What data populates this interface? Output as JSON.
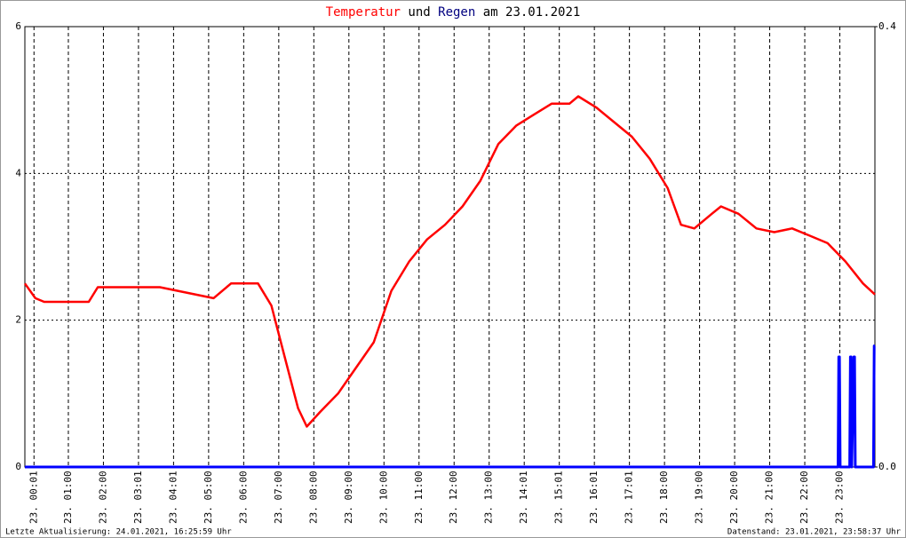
{
  "chart_data": {
    "type": "line",
    "title_parts": [
      "Temperatur",
      "und",
      "Regen",
      "am 23.01.2021"
    ],
    "title_colors": [
      "#ff0000",
      "#000000",
      "#000080",
      "#000000"
    ],
    "footer_left": "Letzte Aktualisierung: 24.01.2021, 16:25:59 Uhr",
    "footer_right": "Datenstand: 23.01.2021, 23:58:37 Uhr",
    "xlim": [
      -0.24,
      24
    ],
    "xticks": [
      {
        "value": 0.02,
        "label": "23. 00:01"
      },
      {
        "value": 1,
        "label": "23. 01:00"
      },
      {
        "value": 2,
        "label": "23. 02:00"
      },
      {
        "value": 3,
        "label": "23. 03:01"
      },
      {
        "value": 4,
        "label": "23. 04:01"
      },
      {
        "value": 5,
        "label": "23. 05:00"
      },
      {
        "value": 6,
        "label": "23. 06:00"
      },
      {
        "value": 7,
        "label": "23. 07:00"
      },
      {
        "value": 8,
        "label": "23. 08:00"
      },
      {
        "value": 9,
        "label": "23. 09:00"
      },
      {
        "value": 10,
        "label": "23. 10:00"
      },
      {
        "value": 11,
        "label": "23. 11:00"
      },
      {
        "value": 12,
        "label": "23. 12:00"
      },
      {
        "value": 13,
        "label": "23. 13:00"
      },
      {
        "value": 14,
        "label": "23. 14:01"
      },
      {
        "value": 15,
        "label": "23. 15:01"
      },
      {
        "value": 16,
        "label": "23. 16:01"
      },
      {
        "value": 17,
        "label": "23. 17:01"
      },
      {
        "value": 18,
        "label": "23. 18:00"
      },
      {
        "value": 19,
        "label": "23. 19:00"
      },
      {
        "value": 20,
        "label": "23. 20:00"
      },
      {
        "value": 21,
        "label": "23. 21:00"
      },
      {
        "value": 22,
        "label": "23. 22:00"
      },
      {
        "value": 23,
        "label": "23. 23:00"
      }
    ],
    "ylim": [
      0,
      6
    ],
    "yticks": [
      0,
      2,
      4,
      6
    ],
    "y2lim": [
      0,
      0.4
    ],
    "y2ticks": [
      {
        "value": 0,
        "label": "0.0"
      },
      0.4
    ],
    "grid": true,
    "series": [
      {
        "name": "Temperatur",
        "color": "#ff0000",
        "x": [
          -0.24,
          0.06,
          0.31,
          1.58,
          1.84,
          3.61,
          5.14,
          5.64,
          6.41,
          6.79,
          7.17,
          7.55,
          7.8,
          8.18,
          8.69,
          9.2,
          9.71,
          10.21,
          10.72,
          11.23,
          11.74,
          12.24,
          12.75,
          13.26,
          13.77,
          14.27,
          14.78,
          15.29,
          15.54,
          16.05,
          16.56,
          17.07,
          17.58,
          18.09,
          18.47,
          18.85,
          19.35,
          19.61,
          20.11,
          20.62,
          21.13,
          21.64,
          22.15,
          22.65,
          23.16,
          23.66,
          24.0
        ],
        "values": [
          2.5,
          2.3,
          2.25,
          2.25,
          2.45,
          2.45,
          2.3,
          2.5,
          2.5,
          2.2,
          1.5,
          0.8,
          0.55,
          0.75,
          1.0,
          1.35,
          1.7,
          2.4,
          2.8,
          3.1,
          3.3,
          3.55,
          3.9,
          4.4,
          4.65,
          4.8,
          4.95,
          4.95,
          5.05,
          4.9,
          4.7,
          4.5,
          4.2,
          3.8,
          3.3,
          3.25,
          3.45,
          3.55,
          3.45,
          3.25,
          3.2,
          3.25,
          3.15,
          3.05,
          2.8,
          2.5,
          2.35
        ]
      },
      {
        "name": "Regen",
        "color": "#0000ff",
        "axis": "y2",
        "x": [
          -0.24,
          22.95,
          22.97,
          22.99,
          23.01,
          23.28,
          23.3,
          23.32,
          23.34,
          23.4,
          23.42,
          23.44,
          23.96,
          23.98,
          24.0
        ],
        "values": [
          0,
          0,
          0.1,
          0.1,
          0,
          0,
          0.1,
          0.1,
          0,
          0.1,
          0.1,
          0,
          0,
          0.11,
          0.11
        ]
      }
    ]
  }
}
